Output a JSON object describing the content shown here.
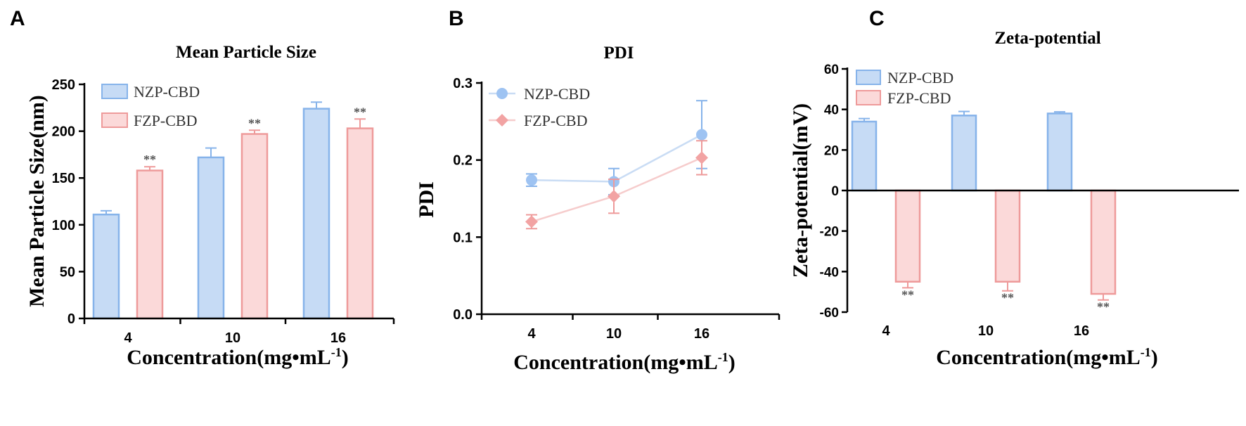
{
  "colors": {
    "nzp_fill": "#c6dbf5",
    "nzp_stroke": "#86b3ea",
    "fzp_fill": "#fbd9d9",
    "fzp_stroke": "#ee9a9a",
    "nzp_marker": "#9ec3f2",
    "fzp_marker": "#f2a3a3",
    "nzp_line": "#c9dcf4",
    "fzp_line": "#f6cccc",
    "err_nzp": "#86b3ea",
    "err_fzp": "#ee9a9a",
    "star": "#555555"
  },
  "chart_data": [
    {
      "panel": "A",
      "type": "bar",
      "title": "Mean Particle Size",
      "xlabel": "Concentration(mg•mL",
      "xlabel_sup": "-1",
      "xlabel_end": ")",
      "ylabel": "Mean Particle Size(nm)",
      "ylim": [
        0,
        250
      ],
      "yticks": [
        "0",
        "50",
        "100",
        "150",
        "200",
        "250"
      ],
      "categories": [
        "4",
        "10",
        "16"
      ],
      "series": [
        {
          "name": "NZP-CBD",
          "values": [
            111,
            172,
            224
          ],
          "errors": [
            4,
            10,
            7
          ]
        },
        {
          "name": "FZP-CBD",
          "values": [
            158,
            197,
            203
          ],
          "errors": [
            4,
            4,
            10
          ]
        }
      ],
      "annotations": [
        "**",
        "**",
        "**"
      ],
      "legend": "top-left"
    },
    {
      "panel": "B",
      "type": "line",
      "title": "PDI",
      "xlabel": "Concentration(mg•mL",
      "xlabel_sup": "-1",
      "xlabel_end": ")",
      "ylabel": "PDI",
      "ylim": [
        0.0,
        0.3
      ],
      "yticks": [
        "0.0",
        "0.1",
        "0.2",
        "0.3"
      ],
      "categories": [
        "4",
        "10",
        "16"
      ],
      "series": [
        {
          "name": "NZP-CBD",
          "values": [
            0.174,
            0.172,
            0.233
          ],
          "errors": [
            0.008,
            0.017,
            0.044
          ]
        },
        {
          "name": "FZP-CBD",
          "values": [
            0.12,
            0.153,
            0.203
          ],
          "errors": [
            0.009,
            0.022,
            0.022
          ]
        }
      ],
      "legend": "top-left"
    },
    {
      "panel": "C",
      "type": "bar",
      "title": "Zeta-potential",
      "xlabel": "Concentration(mg•mL",
      "xlabel_sup": "-1",
      "xlabel_end": ")",
      "ylabel": "Zeta-potential(mV)",
      "ylim": [
        -60,
        60
      ],
      "yticks": [
        "-60",
        "-40",
        "-20",
        "0",
        "20",
        "40",
        "60"
      ],
      "categories": [
        "4",
        "10",
        "16"
      ],
      "series": [
        {
          "name": "NZP-CBD",
          "values": [
            34,
            37,
            38
          ],
          "errors": [
            1.5,
            2,
            0.8
          ]
        },
        {
          "name": "FZP-CBD",
          "values": [
            -45,
            -45,
            -51
          ],
          "errors": [
            3,
            4.5,
            3
          ]
        }
      ],
      "annotations": [
        "**",
        "**",
        "**"
      ],
      "legend": "top-left"
    }
  ]
}
